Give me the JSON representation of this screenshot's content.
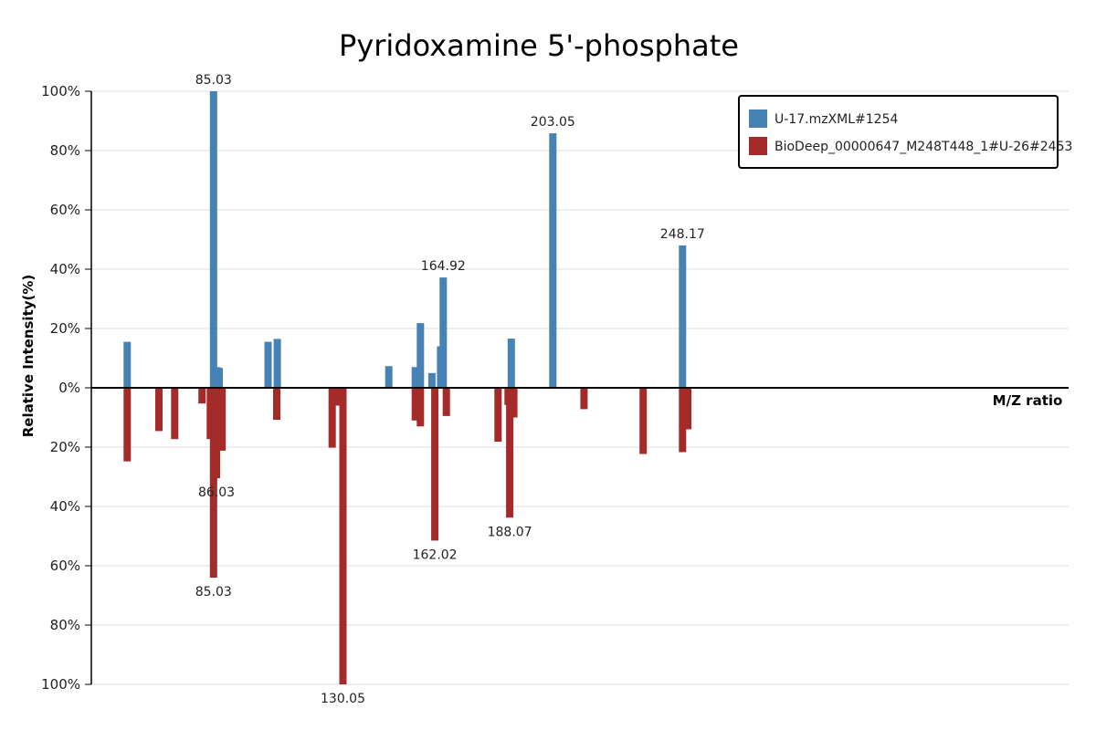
{
  "chart_data": {
    "type": "bar",
    "title": "Pyridoxamine 5'-phosphate",
    "xlabel": "M/Z ratio",
    "ylabel": "Relative Intensity(%)",
    "ylim": [
      -100,
      100
    ],
    "yticks": [
      "100%",
      "80%",
      "60%",
      "40%",
      "20%",
      "0%",
      "20%",
      "40%",
      "60%",
      "80%",
      "100%"
    ],
    "grid": true,
    "legend_position": "top-right",
    "colors": {
      "query": "#4682b4",
      "reference": "#a52a2a"
    },
    "series": [
      {
        "name": "U-17.mzXML#1254",
        "role": "query",
        "peaks": [
          {
            "mz": 55.0,
            "intensity": 15.5
          },
          {
            "mz": 85.03,
            "intensity": 100,
            "label": "85.03"
          },
          {
            "mz": 86.1,
            "intensity": 7.0
          },
          {
            "mz": 87.0,
            "intensity": 6.7
          },
          {
            "mz": 104.0,
            "intensity": 15.5
          },
          {
            "mz": 107.2,
            "intensity": 16.5
          },
          {
            "mz": 146.0,
            "intensity": 7.3
          },
          {
            "mz": 155.2,
            "intensity": 7.0
          },
          {
            "mz": 157.0,
            "intensity": 21.8
          },
          {
            "mz": 161.0,
            "intensity": 5.0
          },
          {
            "mz": 164.0,
            "intensity": 14.0
          },
          {
            "mz": 164.92,
            "intensity": 37.2,
            "label": "164.92"
          },
          {
            "mz": 188.6,
            "intensity": 16.6
          },
          {
            "mz": 203.05,
            "intensity": 85.8,
            "label": "203.05"
          },
          {
            "mz": 248.17,
            "intensity": 48.0,
            "label": "248.17"
          }
        ]
      },
      {
        "name": "BioDeep_00000647_M248T448_1#U-26#2453",
        "role": "reference",
        "peaks": [
          {
            "mz": 55.0,
            "intensity": 24.8
          },
          {
            "mz": 66.0,
            "intensity": 14.6
          },
          {
            "mz": 71.5,
            "intensity": 17.3
          },
          {
            "mz": 81.0,
            "intensity": 5.3
          },
          {
            "mz": 83.9,
            "intensity": 17.3
          },
          {
            "mz": 85.03,
            "intensity": 64.0,
            "label": "85.03"
          },
          {
            "mz": 86.03,
            "intensity": 30.5,
            "label": "86.03"
          },
          {
            "mz": 88.0,
            "intensity": 21.2
          },
          {
            "mz": 107.0,
            "intensity": 10.8
          },
          {
            "mz": 126.3,
            "intensity": 20.2
          },
          {
            "mz": 127.7,
            "intensity": 6.0
          },
          {
            "mz": 130.05,
            "intensity": 100,
            "label": "130.05"
          },
          {
            "mz": 155.2,
            "intensity": 11.0
          },
          {
            "mz": 157.0,
            "intensity": 13.0
          },
          {
            "mz": 162.02,
            "intensity": 51.5,
            "label": "162.02"
          },
          {
            "mz": 166.0,
            "intensity": 9.5
          },
          {
            "mz": 184.0,
            "intensity": 18.2
          },
          {
            "mz": 187.5,
            "intensity": 5.8
          },
          {
            "mz": 188.07,
            "intensity": 43.8,
            "label": "188.07"
          },
          {
            "mz": 189.5,
            "intensity": 10.0
          },
          {
            "mz": 213.9,
            "intensity": 7.2
          },
          {
            "mz": 234.5,
            "intensity": 22.3
          },
          {
            "mz": 248.17,
            "intensity": 21.7
          },
          {
            "mz": 250.0,
            "intensity": 14.0
          }
        ]
      }
    ],
    "x_domain": [
      42.5,
      382.5
    ]
  }
}
